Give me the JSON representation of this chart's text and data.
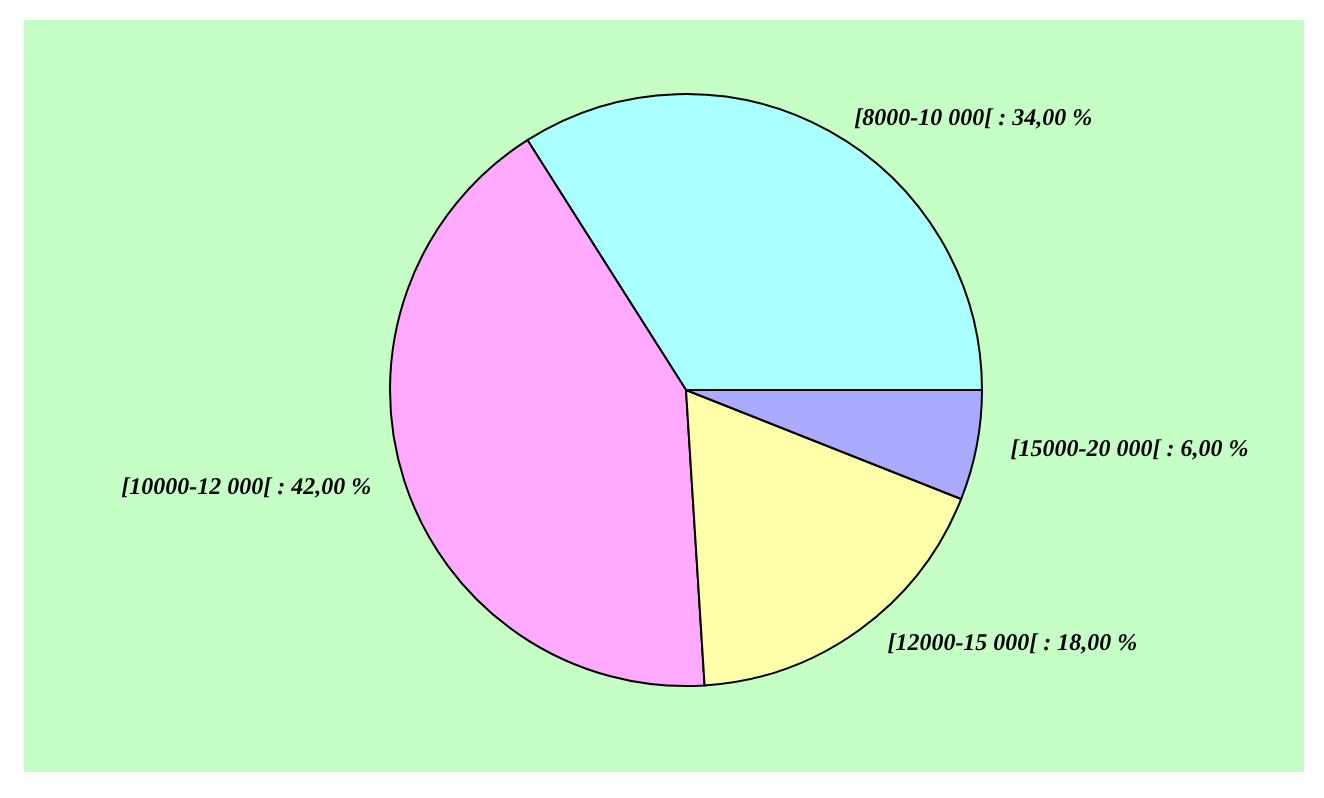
{
  "chart_data": {
    "type": "pie",
    "categories": [
      "[8000-10 000[",
      "[10000-12 000[",
      "[12000-15 000[",
      "[15000-20 000["
    ],
    "values": [
      34,
      42,
      18,
      6
    ],
    "value_labels": [
      "34,00 %",
      "42,00 %",
      "18,00 %",
      "6,00 %"
    ],
    "colors": [
      "#aaffff",
      "#ffaaff",
      "#ffffaa",
      "#aaaaff"
    ],
    "legend": false
  }
}
